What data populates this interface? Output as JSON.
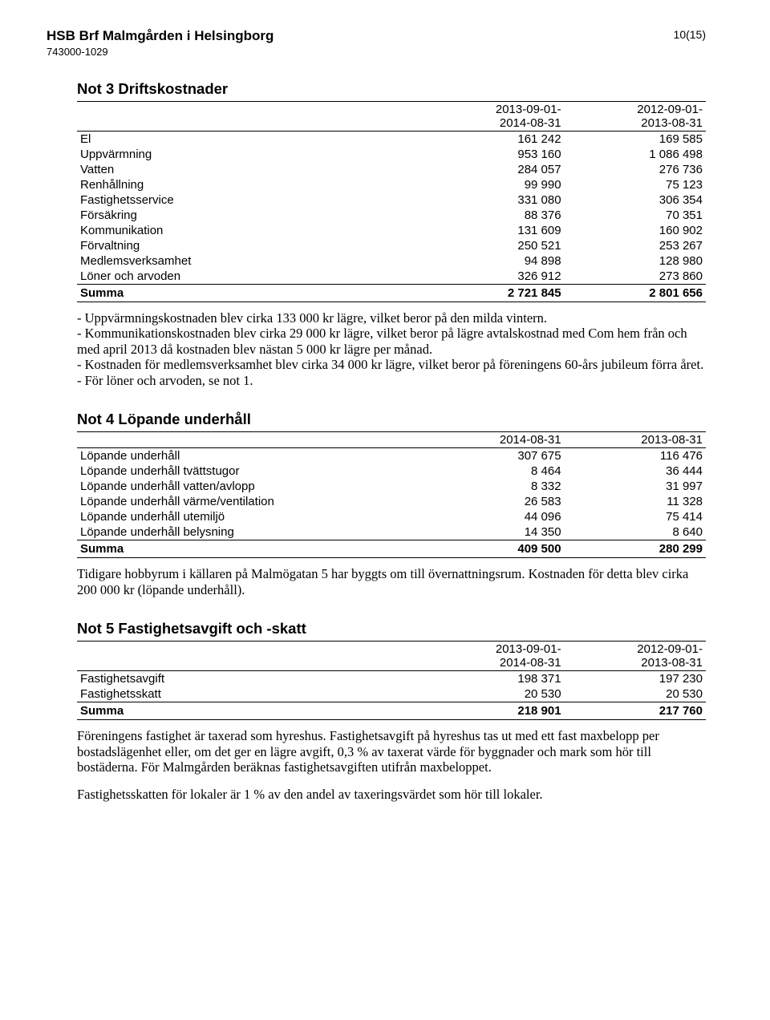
{
  "header": {
    "org_title": "HSB Brf Malmgården i Helsingborg",
    "org_number": "743000-1029",
    "page_no": "10(15)"
  },
  "not3": {
    "title": "Not 3  Driftskostnader",
    "period_left_top": "2013-09-01-",
    "period_left_bot": "2014-08-31",
    "period_right_top": "2012-09-01-",
    "period_right_bot": "2013-08-31",
    "rows": [
      {
        "label": "El",
        "v1": "161 242",
        "v2": "169 585"
      },
      {
        "label": "Uppvärmning",
        "v1": "953 160",
        "v2": "1 086 498"
      },
      {
        "label": "Vatten",
        "v1": "284 057",
        "v2": "276 736"
      },
      {
        "label": "Renhållning",
        "v1": "99 990",
        "v2": "75 123"
      },
      {
        "label": "Fastighetsservice",
        "v1": "331 080",
        "v2": "306 354"
      },
      {
        "label": "Försäkring",
        "v1": "88 376",
        "v2": "70 351"
      },
      {
        "label": "Kommunikation",
        "v1": "131 609",
        "v2": "160 902"
      },
      {
        "label": "Förvaltning",
        "v1": "250 521",
        "v2": "253 267"
      },
      {
        "label": "Medlemsverksamhet",
        "v1": "94 898",
        "v2": "128 980"
      },
      {
        "label": "Löner och arvoden",
        "v1": "326 912",
        "v2": "273 860"
      }
    ],
    "sum_label": "Summa",
    "sum_v1": "2 721 845",
    "sum_v2": "2 801 656",
    "text1": "- Uppvärmningskostnaden blev cirka 133 000 kr lägre, vilket beror på den milda vintern.",
    "text2": "- Kommunikationskostnaden blev cirka 29 000 kr lägre, vilket beror på lägre avtalskostnad med Com hem från och med april 2013 då kostnaden blev nästan 5 000 kr lägre per månad.",
    "text3": "- Kostnaden för medlemsverksamhet blev cirka 34 000 kr lägre, vilket beror på föreningens 60-års jubileum förra året.",
    "text4": "- För löner och arvoden, se not 1."
  },
  "not4": {
    "title": "Not 4  Löpande underhåll",
    "period_left": "2014-08-31",
    "period_right": "2013-08-31",
    "rows": [
      {
        "label": "Löpande underhåll",
        "v1": "307 675",
        "v2": "116 476"
      },
      {
        "label": "Löpande underhåll tvättstugor",
        "v1": "8 464",
        "v2": "36 444"
      },
      {
        "label": "Löpande underhåll vatten/avlopp",
        "v1": "8 332",
        "v2": "31 997"
      },
      {
        "label": "Löpande underhåll värme/ventilation",
        "v1": "26 583",
        "v2": "11 328"
      },
      {
        "label": "Löpande underhåll utemiljö",
        "v1": "44 096",
        "v2": "75 414"
      },
      {
        "label": "Löpande underhåll belysning",
        "v1": "14 350",
        "v2": "8 640"
      }
    ],
    "sum_label": "Summa",
    "sum_v1": "409 500",
    "sum_v2": "280 299",
    "text1": "Tidigare hobbyrum i källaren på Malmögatan 5 har byggts om till övernattningsrum. Kostnaden för detta blev cirka 200 000 kr (löpande underhåll)."
  },
  "not5": {
    "title": "Not 5  Fastighetsavgift och -skatt",
    "period_left_top": "2013-09-01-",
    "period_left_bot": "2014-08-31",
    "period_right_top": "2012-09-01-",
    "period_right_bot": "2013-08-31",
    "rows": [
      {
        "label": "Fastighetsavgift",
        "v1": "198 371",
        "v2": "197 230"
      },
      {
        "label": "Fastighetsskatt",
        "v1": "20 530",
        "v2": "20 530"
      }
    ],
    "sum_label": "Summa",
    "sum_v1": "218 901",
    "sum_v2": "217 760",
    "text1": "Föreningens fastighet är taxerad som hyreshus. Fastighetsavgift på hyreshus tas ut med ett fast maxbelopp per bostadslägenhet eller, om det ger en lägre avgift, 0,3 % av taxerat värde för byggnader och mark som hör till bostäderna. För Malmgården beräknas fastighetsavgiften utifrån maxbeloppet.",
    "text2": "Fastighetsskatten för lokaler är 1 % av den andel av taxeringsvärdet som hör till lokaler."
  }
}
